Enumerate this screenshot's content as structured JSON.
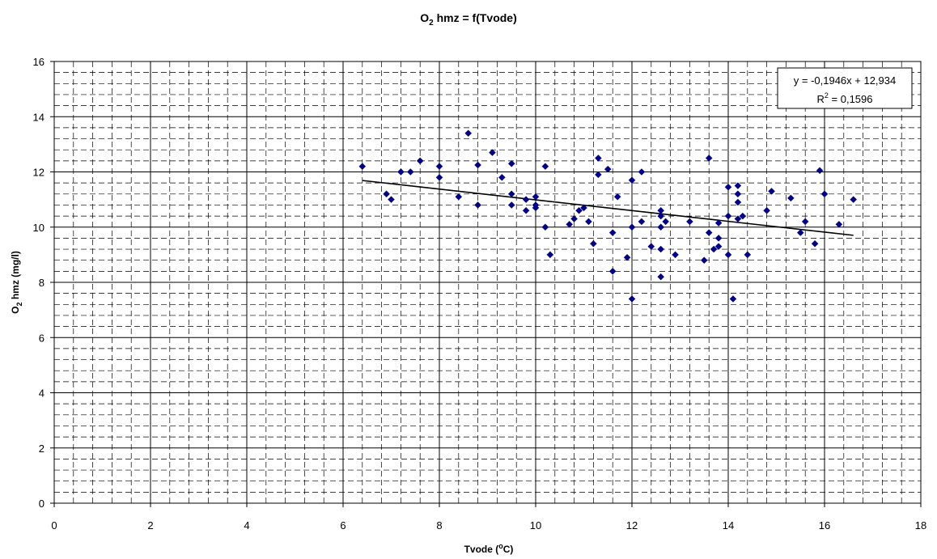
{
  "chart_data": {
    "type": "scatter",
    "title": {
      "main": "O",
      "sub": "2",
      "rest": " hmz = f(Tvode)"
    },
    "xlabel": {
      "main": "Tvode (",
      "sup": "o",
      "rest": "C)"
    },
    "ylabel": {
      "main": "O",
      "sub": "2",
      "rest": " hmz (mg/l)"
    },
    "xlim": [
      0,
      18
    ],
    "ylim": [
      0,
      16
    ],
    "x_major_ticks": [
      0,
      2,
      4,
      6,
      8,
      10,
      12,
      14,
      16,
      18
    ],
    "y_major_ticks": [
      0,
      2,
      4,
      6,
      8,
      10,
      12,
      14,
      16
    ],
    "x_tick_labels": [
      "0",
      "2",
      "4",
      "6",
      "8",
      "10",
      "12",
      "14",
      "16",
      "18"
    ],
    "y_tick_labels": [
      "0",
      "2",
      "4",
      "6",
      "8",
      "10",
      "12",
      "14",
      "16"
    ],
    "grid": "major solid, minor dashed",
    "marker_color": "#00008B",
    "points": [
      [
        6.4,
        12.2
      ],
      [
        6.9,
        11.2
      ],
      [
        7.0,
        11.0
      ],
      [
        7.2,
        12.0
      ],
      [
        7.4,
        12.0
      ],
      [
        7.6,
        12.4
      ],
      [
        8.0,
        12.2
      ],
      [
        8.0,
        11.8
      ],
      [
        8.4,
        11.1
      ],
      [
        8.6,
        13.4
      ],
      [
        8.8,
        12.25
      ],
      [
        8.8,
        10.8
      ],
      [
        9.1,
        12.7
      ],
      [
        9.3,
        11.8
      ],
      [
        9.5,
        12.3
      ],
      [
        9.5,
        11.2
      ],
      [
        9.5,
        10.8
      ],
      [
        9.8,
        11.0
      ],
      [
        9.8,
        10.6
      ],
      [
        10.0,
        11.1
      ],
      [
        10.0,
        10.8
      ],
      [
        10.0,
        10.7
      ],
      [
        10.2,
        12.2
      ],
      [
        10.2,
        10.0
      ],
      [
        10.3,
        9.0
      ],
      [
        10.7,
        10.1
      ],
      [
        10.8,
        10.3
      ],
      [
        10.9,
        10.6
      ],
      [
        11.0,
        10.7
      ],
      [
        11.1,
        10.2
      ],
      [
        11.2,
        9.4
      ],
      [
        11.3,
        12.5
      ],
      [
        11.3,
        11.9
      ],
      [
        11.5,
        12.1
      ],
      [
        11.6,
        9.8
      ],
      [
        11.6,
        8.4
      ],
      [
        11.7,
        11.1
      ],
      [
        11.9,
        8.9
      ],
      [
        12.0,
        11.7
      ],
      [
        12.0,
        10.0
      ],
      [
        12.0,
        7.4
      ],
      [
        12.2,
        12.0
      ],
      [
        12.2,
        10.2
      ],
      [
        12.4,
        9.3
      ],
      [
        12.6,
        10.6
      ],
      [
        12.6,
        10.4
      ],
      [
        12.6,
        10.0
      ],
      [
        12.6,
        9.2
      ],
      [
        12.6,
        8.2
      ],
      [
        12.7,
        10.2
      ],
      [
        12.9,
        9.0
      ],
      [
        13.2,
        10.2
      ],
      [
        13.5,
        8.8
      ],
      [
        13.6,
        12.5
      ],
      [
        13.6,
        9.8
      ],
      [
        13.7,
        9.2
      ],
      [
        13.8,
        10.15
      ],
      [
        13.8,
        9.6
      ],
      [
        13.8,
        9.3
      ],
      [
        14.0,
        11.45
      ],
      [
        14.0,
        10.4
      ],
      [
        14.0,
        9.0
      ],
      [
        14.1,
        7.4
      ],
      [
        14.2,
        11.5
      ],
      [
        14.2,
        11.2
      ],
      [
        14.2,
        10.9
      ],
      [
        14.2,
        10.3
      ],
      [
        14.3,
        10.4
      ],
      [
        14.4,
        9.0
      ],
      [
        14.8,
        10.6
      ],
      [
        14.9,
        11.3
      ],
      [
        15.3,
        11.05
      ],
      [
        15.5,
        9.8
      ],
      [
        15.6,
        10.2
      ],
      [
        15.8,
        9.4
      ],
      [
        15.9,
        12.05
      ],
      [
        16.0,
        11.2
      ],
      [
        16.3,
        10.1
      ],
      [
        16.6,
        11.0
      ]
    ],
    "trendline": {
      "slope": -0.1946,
      "intercept": 12.934,
      "x_range": [
        6.4,
        16.6
      ]
    },
    "annotation": {
      "equation": "y = -0,1946x + 12,934",
      "r2_main": "R",
      "r2_sup": "2",
      "r2_rest": " = 0,1596"
    }
  }
}
